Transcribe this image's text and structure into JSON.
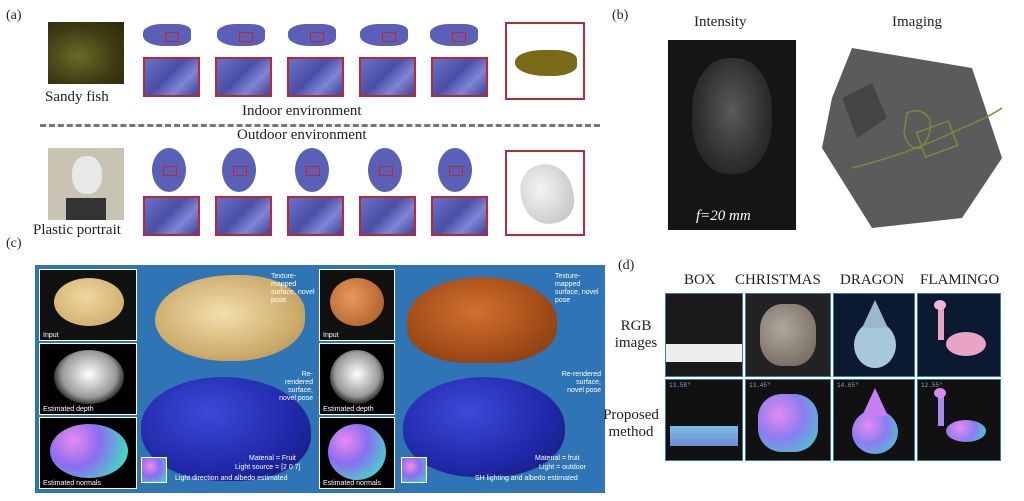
{
  "panel_a": {
    "label": "(a)",
    "fish_caption": "Sandy fish",
    "portrait_caption": "Plastic portrait",
    "indoor_label": "Indoor environment",
    "outdoor_label": "Outdoor environment"
  },
  "panel_b": {
    "label": "(b)",
    "intensity_title": "Intensity",
    "imaging_title": "Imaging",
    "focal": "f=20 mm"
  },
  "panel_c": {
    "label": "(c)",
    "left": {
      "input": "Input",
      "depth": "Estimated depth",
      "normals": "Estimated normals",
      "texture_note": "Texture-mapped surface, novel pose",
      "rerender_note": "Re-rendered surface, novel pose",
      "material": "Material = Fruit",
      "light": "Light source = [2 0 7]",
      "footer": "Light direction and albedo estimated"
    },
    "right": {
      "input": "Input",
      "depth": "Estimated depth",
      "normals": "Estimated normals",
      "texture_note": "Texture-mapped surface, novel pose",
      "rerender_note": "Re-rendered surface, novel pose",
      "material": "Material = fruit",
      "light": "Light = outdoor",
      "footer": "SH lighting and albedo estimated"
    }
  },
  "panel_d": {
    "label": "(d)",
    "columns": [
      "BOX",
      "CHRISTMAS",
      "DRAGON",
      "FLAMINGO"
    ],
    "row_rgb": "RGB images",
    "row_proposed": "Proposed method",
    "timestamps": [
      "13.58\"",
      "13.45\"",
      "14.65\"",
      "12.55\""
    ]
  }
}
